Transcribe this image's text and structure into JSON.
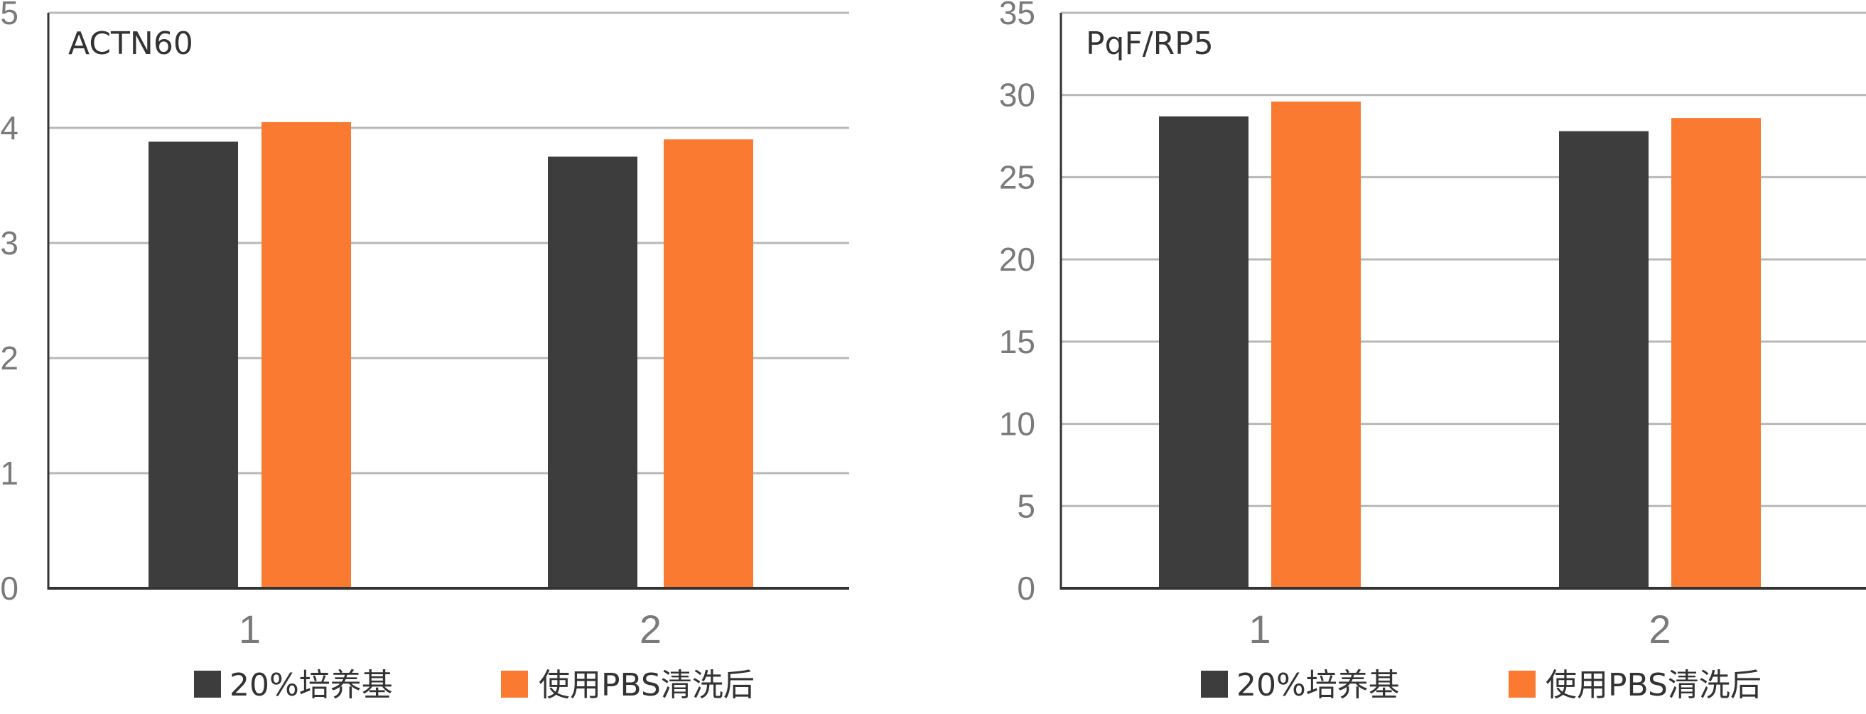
{
  "chart_data": [
    {
      "type": "bar",
      "title": "ACTN60",
      "categories": [
        "1",
        "2"
      ],
      "ylim": [
        0,
        5
      ],
      "yticks": [
        "0",
        "1",
        "2",
        "3",
        "4",
        "5"
      ],
      "series": [
        {
          "name": "20%培养基",
          "values": [
            3.88,
            3.75
          ],
          "color": "#3d3d3d"
        },
        {
          "name": "使用PBS清洗后",
          "values": [
            4.05,
            3.9
          ],
          "color": "#f97a30"
        }
      ],
      "grid": true,
      "legend": "bottom"
    },
    {
      "type": "bar",
      "title": "PqF/RP5",
      "categories": [
        "1",
        "2"
      ],
      "ylim": [
        0,
        35
      ],
      "yticks": [
        "0",
        "5",
        "10",
        "15",
        "20",
        "25",
        "30",
        "35"
      ],
      "series": [
        {
          "name": "20%培养基",
          "values": [
            28.7,
            27.8
          ],
          "color": "#3d3d3d"
        },
        {
          "name": "使用PBS清洗后",
          "values": [
            29.6,
            28.6
          ],
          "color": "#f97a30"
        }
      ],
      "grid": true,
      "legend": "bottom"
    }
  ]
}
